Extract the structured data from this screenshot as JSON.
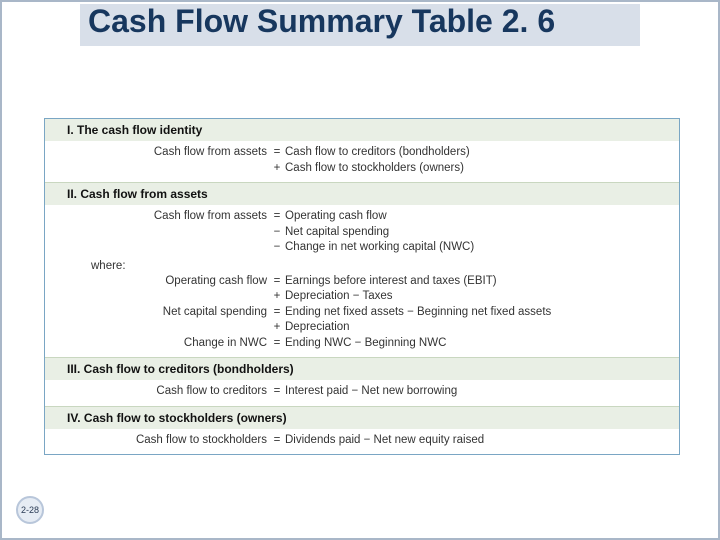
{
  "title": "Cash Flow Summary Table 2. 6",
  "page_number": "2-28",
  "colors": {
    "title_bg": "#d8dfe9",
    "title_text": "#17375e",
    "table_border": "#7aa6c4",
    "header_bg": "#e9efe5",
    "body_bg": "#ffffff",
    "slide_border": "#a9b7c8",
    "badge_bg": "#e6ecf4",
    "badge_border": "#b8c6da"
  },
  "sections": {
    "s1": {
      "header": "I.   The cash flow identity",
      "rows": [
        {
          "left": "Cash flow from assets",
          "op": "=",
          "right": "Cash flow to creditors (bondholders)"
        },
        {
          "left": "",
          "op": "+",
          "right": "Cash flow to stockholders (owners)"
        }
      ]
    },
    "s2": {
      "header": "II.   Cash flow from assets",
      "rows": [
        {
          "left": "Cash flow from assets",
          "op": "=",
          "right": "Operating cash flow"
        },
        {
          "left": "",
          "op": "−",
          "right": "Net capital spending"
        },
        {
          "left": "",
          "op": "−",
          "right": "Change in net working capital (NWC)"
        }
      ],
      "where_label": "where:",
      "rows2": [
        {
          "left": "Operating cash flow",
          "op": "=",
          "right": "Earnings before interest and taxes (EBIT)"
        },
        {
          "left": "",
          "op": "+",
          "right": "Depreciation − Taxes"
        },
        {
          "left": "Net capital spending",
          "op": "=",
          "right": "Ending net fixed assets − Beginning net fixed assets"
        },
        {
          "left": "",
          "op": "+",
          "right": "Depreciation"
        },
        {
          "left": "Change in NWC",
          "op": "=",
          "right": "Ending NWC − Beginning NWC"
        }
      ]
    },
    "s3": {
      "header": "III.   Cash flow to creditors (bondholders)",
      "rows": [
        {
          "left": "Cash flow to creditors",
          "op": "=",
          "right": "Interest paid − Net new borrowing"
        }
      ]
    },
    "s4": {
      "header": "IV.   Cash flow to stockholders (owners)",
      "rows": [
        {
          "left": "Cash flow to stockholders",
          "op": "=",
          "right": "Dividends paid − Net new equity raised"
        }
      ]
    }
  }
}
